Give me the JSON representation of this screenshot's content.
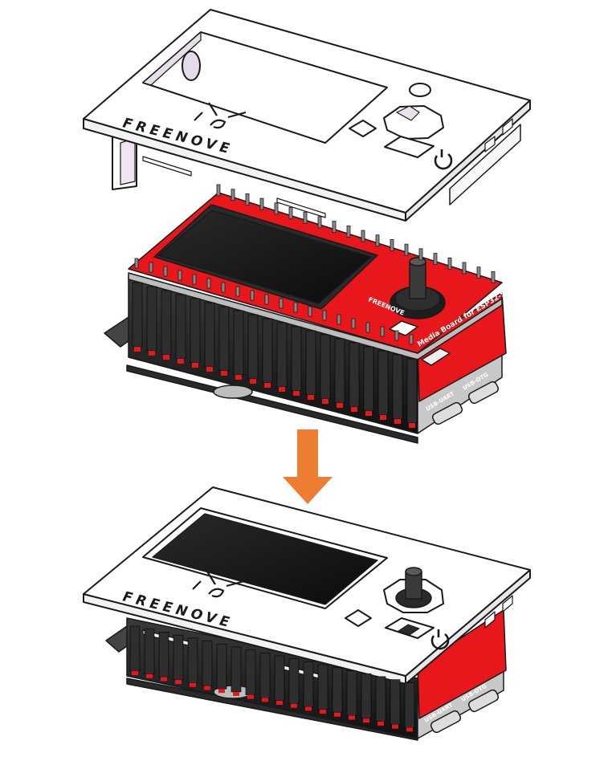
{
  "brand": "FREENOVE",
  "board_brand": "FREENOVE",
  "board_name": "Media Board for ESP32-S3",
  "port_labels": {
    "usb_uart": "USB-UART",
    "usb_otg": "USB-OTG"
  },
  "colors": {
    "pcb_red": "#e8171c",
    "arrow_orange": "#ed7d31",
    "case_white": "#ffffff",
    "outline": "#1a1a1a",
    "header_black": "#232323",
    "screen_black": "#151515"
  },
  "icons": [
    "freenove-logo-icon",
    "power-icon",
    "arrow-down-icon"
  ]
}
